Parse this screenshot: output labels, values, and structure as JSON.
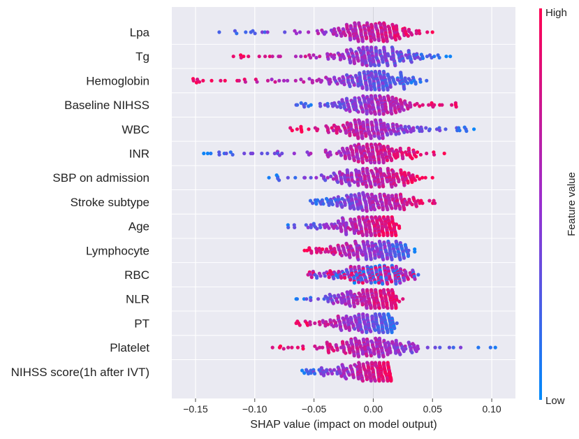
{
  "chart_data": {
    "type": "scatter",
    "subtype": "shap-beeswarm",
    "title": "",
    "xlabel": "SHAP value (impact on model output)",
    "ylabel": "",
    "xlim": [
      -0.17,
      0.12
    ],
    "xticks": [
      -0.15,
      -0.1,
      -0.05,
      0.0,
      0.05,
      0.1
    ],
    "xtick_labels": [
      "−0.15",
      "−0.10",
      "−0.05",
      "0.00",
      "0.05",
      "0.10"
    ],
    "grid": "vertical",
    "features": [
      {
        "name": "Lpa",
        "min": -0.13,
        "max": 0.05,
        "low_side": "negative",
        "dense": [
          -0.06,
          0.04
        ],
        "hi_corr": "positive"
      },
      {
        "name": "Tg",
        "min": -0.118,
        "max": 0.065,
        "low_side": "positive",
        "dense": [
          -0.09,
          0.045
        ],
        "hi_corr": "negative"
      },
      {
        "name": "Hemoglobin",
        "min": -0.152,
        "max": 0.045,
        "low_side": "positive",
        "dense": [
          -0.1,
          0.04
        ],
        "hi_corr": "negative"
      },
      {
        "name": "Baseline NIHSS",
        "min": -0.065,
        "max": 0.07,
        "low_side": "negative",
        "dense": [
          -0.055,
          0.06
        ],
        "hi_corr": "positive"
      },
      {
        "name": "WBC",
        "min": -0.07,
        "max": 0.085,
        "low_side": "positive",
        "dense": [
          -0.04,
          0.06
        ],
        "hi_corr": "negative"
      },
      {
        "name": "INR",
        "min": -0.143,
        "max": 0.06,
        "low_side": "negative",
        "dense": [
          -0.1,
          0.04
        ],
        "hi_corr": "positive"
      },
      {
        "name": "SBP on admission",
        "min": -0.088,
        "max": 0.05,
        "low_side": "negative",
        "dense": [
          -0.06,
          0.04
        ],
        "hi_corr": "positive"
      },
      {
        "name": "Stroke subtype",
        "min": -0.053,
        "max": 0.052,
        "low_side": "negative",
        "dense": [
          -0.05,
          0.045
        ],
        "hi_corr": "positive"
      },
      {
        "name": "Age",
        "min": -0.072,
        "max": 0.022,
        "low_side": "negative",
        "dense": [
          -0.055,
          0.02
        ],
        "hi_corr": "positive"
      },
      {
        "name": "Lymphocyte",
        "min": -0.058,
        "max": 0.035,
        "low_side": "positive",
        "dense": [
          -0.05,
          0.03
        ],
        "hi_corr": "negative"
      },
      {
        "name": "RBC",
        "min": -0.055,
        "max": 0.038,
        "low_side": "positive",
        "dense": [
          -0.05,
          0.035
        ],
        "hi_corr": "mixed"
      },
      {
        "name": "NLR",
        "min": -0.065,
        "max": 0.025,
        "low_side": "negative",
        "dense": [
          -0.05,
          0.02
        ],
        "hi_corr": "positive"
      },
      {
        "name": "PT",
        "min": -0.065,
        "max": 0.02,
        "low_side": "positive",
        "dense": [
          -0.05,
          0.018
        ],
        "hi_corr": "negative"
      },
      {
        "name": "Platelet",
        "min": -0.085,
        "max": 0.103,
        "low_side": "positive",
        "dense": [
          -0.065,
          0.04
        ],
        "hi_corr": "negative"
      },
      {
        "name": "NIHSS score(1h after IVT)",
        "min": -0.06,
        "max": 0.015,
        "low_side": "negative",
        "dense": [
          -0.05,
          0.015
        ],
        "hi_corr": "positive"
      }
    ],
    "colorbar": {
      "label": "Feature value",
      "high_label": "High",
      "low_label": "Low",
      "high_color": "#ff0052",
      "low_color": "#008bfb"
    }
  }
}
